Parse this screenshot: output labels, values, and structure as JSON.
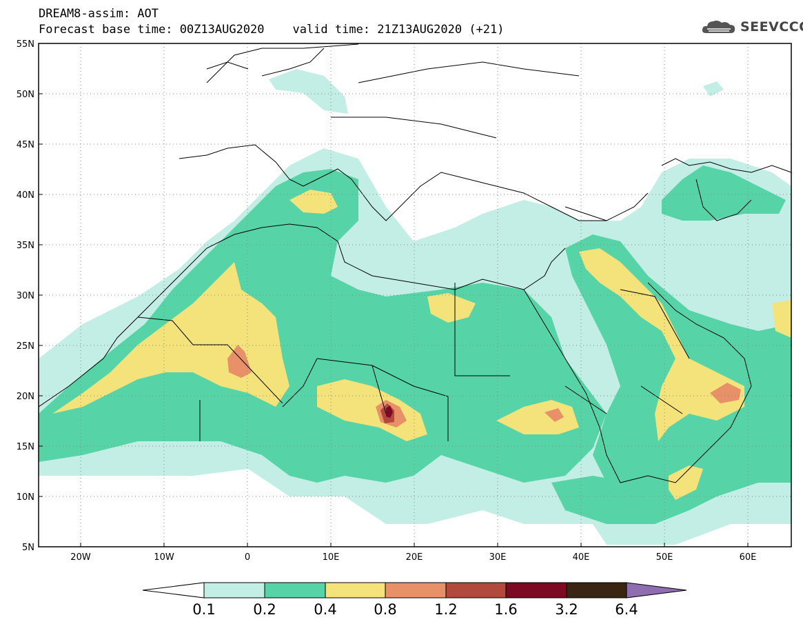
{
  "header": {
    "title_line1": "DREAM8-assim: AOT",
    "title_line2": "Forecast base time: 00Z13AUG2020    valid time: 21Z13AUG2020 (+21)",
    "logo_text": "SEEVCCC"
  },
  "map": {
    "lat_labels": [
      "55N",
      "50N",
      "45N",
      "40N",
      "35N",
      "30N",
      "25N",
      "20N",
      "15N",
      "10N",
      "5N"
    ],
    "lon_labels": [
      "20W",
      "10W",
      "0",
      "10E",
      "20E",
      "30E",
      "40E",
      "50E",
      "60E"
    ],
    "field": "Aerosol Optical Thickness",
    "gridlines": "dotted"
  },
  "colorbar": {
    "levels": [
      "0.1",
      "0.2",
      "0.4",
      "0.8",
      "1.2",
      "1.6",
      "3.2",
      "6.4"
    ],
    "colors": [
      "#ffffff",
      "#c3eee6",
      "#56d4a7",
      "#f4e27a",
      "#e89068",
      "#b14a3c",
      "#7c0a22",
      "#3a2412",
      "#8e6db0"
    ]
  },
  "palette": {
    "aot_0_1": "#c3eee6",
    "aot_0_2": "#56d4a7",
    "aot_0_4": "#f4e27a",
    "aot_0_8": "#e89068",
    "aot_1_2": "#b14a3c",
    "aot_1_6": "#7c0a22"
  }
}
